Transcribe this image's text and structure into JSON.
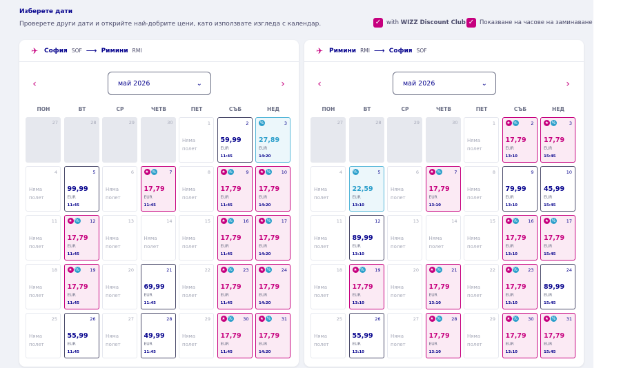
{
  "header": {
    "title": "Изберете дати",
    "subtitle": "Проверете други дати и открийте най-добрите цени, като използвате изгледа с календар.",
    "option_club_prefix": "with",
    "option_club_bold": "WIZZ Discount Club",
    "option_times": "Показване на часове на заминаване"
  },
  "colors": {
    "club_accent": "#c6007e",
    "low_fare": "#2c9fcb",
    "brand_text": "#06038d"
  },
  "icons": {
    "outbound": "plane-takeoff-icon",
    "inbound": "plane-landing-icon",
    "club": "star-icon",
    "discount": "percent-icon"
  },
  "weekdays": [
    "ПОН",
    "ВТ",
    "СР",
    "ЧЕТВ",
    "ПЕТ",
    "СЪБ",
    "НЕД"
  ],
  "no_flight_text": "Няма полет",
  "panels": [
    {
      "from_city": "София",
      "from_code": "SOF",
      "to_city": "Римини",
      "to_code": "RMI",
      "month": "май 2026",
      "days": [
        {
          "d": "27",
          "t": "past"
        },
        {
          "d": "28",
          "t": "past"
        },
        {
          "d": "29",
          "t": "past"
        },
        {
          "d": "30",
          "t": "past"
        },
        {
          "d": "1",
          "t": "none"
        },
        {
          "d": "2",
          "t": "norm",
          "p": "59,99",
          "c": "EUR",
          "tm": "11:45"
        },
        {
          "d": "3",
          "t": "low",
          "p": "27,89",
          "c": "EUR",
          "tm": "14:20",
          "i": [
            "pct"
          ]
        },
        {
          "d": "4",
          "t": "none"
        },
        {
          "d": "5",
          "t": "norm",
          "p": "99,99",
          "c": "EUR",
          "tm": "11:45"
        },
        {
          "d": "6",
          "t": "none"
        },
        {
          "d": "7",
          "t": "disc",
          "p": "17,79",
          "c": "EUR",
          "tm": "11:45",
          "i": [
            "club",
            "pct"
          ]
        },
        {
          "d": "8",
          "t": "none"
        },
        {
          "d": "9",
          "t": "disc",
          "p": "17,79",
          "c": "EUR",
          "tm": "11:45",
          "i": [
            "club",
            "pct"
          ]
        },
        {
          "d": "10",
          "t": "disc",
          "p": "17,79",
          "c": "EUR",
          "tm": "14:20",
          "i": [
            "club",
            "pct"
          ]
        },
        {
          "d": "11",
          "t": "none"
        },
        {
          "d": "12",
          "t": "disc",
          "p": "17,79",
          "c": "EUR",
          "tm": "11:45",
          "i": [
            "club",
            "pct"
          ]
        },
        {
          "d": "13",
          "t": "none"
        },
        {
          "d": "14",
          "t": "none"
        },
        {
          "d": "15",
          "t": "none"
        },
        {
          "d": "16",
          "t": "disc",
          "p": "17,79",
          "c": "EUR",
          "tm": "11:45",
          "i": [
            "club",
            "pct"
          ]
        },
        {
          "d": "17",
          "t": "disc",
          "p": "17,79",
          "c": "EUR",
          "tm": "14:20",
          "i": [
            "club",
            "pct"
          ]
        },
        {
          "d": "18",
          "t": "none"
        },
        {
          "d": "19",
          "t": "disc",
          "p": "17,79",
          "c": "EUR",
          "tm": "11:45",
          "i": [
            "club",
            "pct"
          ]
        },
        {
          "d": "20",
          "t": "none"
        },
        {
          "d": "21",
          "t": "norm",
          "p": "69,99",
          "c": "EUR",
          "tm": "11:45"
        },
        {
          "d": "22",
          "t": "none"
        },
        {
          "d": "23",
          "t": "disc",
          "p": "17,79",
          "c": "EUR",
          "tm": "11:45",
          "i": [
            "club",
            "pct"
          ]
        },
        {
          "d": "24",
          "t": "disc",
          "p": "17,79",
          "c": "EUR",
          "tm": "14:20",
          "i": [
            "club",
            "pct"
          ]
        },
        {
          "d": "25",
          "t": "none"
        },
        {
          "d": "26",
          "t": "norm",
          "p": "55,99",
          "c": "EUR",
          "tm": "11:45"
        },
        {
          "d": "27",
          "t": "none"
        },
        {
          "d": "28",
          "t": "norm",
          "p": "49,99",
          "c": "EUR",
          "tm": "11:45"
        },
        {
          "d": "29",
          "t": "none"
        },
        {
          "d": "30",
          "t": "disc",
          "p": "17,79",
          "c": "EUR",
          "tm": "11:45",
          "i": [
            "club",
            "pct"
          ]
        },
        {
          "d": "31",
          "t": "disc",
          "p": "17,79",
          "c": "EUR",
          "tm": "14:20",
          "i": [
            "club",
            "pct"
          ]
        }
      ]
    },
    {
      "from_city": "Римини",
      "from_code": "RMI",
      "to_city": "София",
      "to_code": "SOF",
      "month": "май 2026",
      "days": [
        {
          "d": "27",
          "t": "past"
        },
        {
          "d": "28",
          "t": "past"
        },
        {
          "d": "29",
          "t": "past"
        },
        {
          "d": "30",
          "t": "past"
        },
        {
          "d": "1",
          "t": "none"
        },
        {
          "d": "2",
          "t": "disc",
          "p": "17,79",
          "c": "EUR",
          "tm": "13:10",
          "i": [
            "club",
            "pct"
          ]
        },
        {
          "d": "3",
          "t": "disc",
          "p": "17,79",
          "c": "EUR",
          "tm": "15:45",
          "i": [
            "club",
            "pct"
          ]
        },
        {
          "d": "4",
          "t": "none"
        },
        {
          "d": "5",
          "t": "low",
          "p": "22,59",
          "c": "EUR",
          "tm": "13:10",
          "i": [
            "pct"
          ]
        },
        {
          "d": "6",
          "t": "none"
        },
        {
          "d": "7",
          "t": "disc",
          "p": "17,79",
          "c": "EUR",
          "tm": "13:10",
          "i": [
            "club",
            "pct"
          ]
        },
        {
          "d": "8",
          "t": "none"
        },
        {
          "d": "9",
          "t": "norm",
          "p": "79,99",
          "c": "EUR",
          "tm": "13:10"
        },
        {
          "d": "10",
          "t": "norm",
          "p": "45,99",
          "c": "EUR",
          "tm": "15:45"
        },
        {
          "d": "11",
          "t": "none"
        },
        {
          "d": "12",
          "t": "norm",
          "p": "89,99",
          "c": "EUR",
          "tm": "13:10"
        },
        {
          "d": "13",
          "t": "none"
        },
        {
          "d": "14",
          "t": "none"
        },
        {
          "d": "15",
          "t": "none"
        },
        {
          "d": "16",
          "t": "disc",
          "p": "17,79",
          "c": "EUR",
          "tm": "13:10",
          "i": [
            "club",
            "pct"
          ]
        },
        {
          "d": "17",
          "t": "disc",
          "p": "17,79",
          "c": "EUR",
          "tm": "15:45",
          "i": [
            "club",
            "pct"
          ]
        },
        {
          "d": "18",
          "t": "none"
        },
        {
          "d": "19",
          "t": "disc",
          "p": "17,79",
          "c": "EUR",
          "tm": "13:10",
          "i": [
            "club",
            "pct"
          ]
        },
        {
          "d": "20",
          "t": "none"
        },
        {
          "d": "21",
          "t": "disc",
          "p": "17,79",
          "c": "EUR",
          "tm": "13:10",
          "i": [
            "club",
            "pct"
          ]
        },
        {
          "d": "22",
          "t": "none"
        },
        {
          "d": "23",
          "t": "disc",
          "p": "17,79",
          "c": "EUR",
          "tm": "13:10",
          "i": [
            "club",
            "pct"
          ]
        },
        {
          "d": "24",
          "t": "norm",
          "p": "89,99",
          "c": "EUR",
          "tm": "15:45"
        },
        {
          "d": "25",
          "t": "none"
        },
        {
          "d": "26",
          "t": "norm",
          "p": "55,99",
          "c": "EUR",
          "tm": "13:10"
        },
        {
          "d": "27",
          "t": "none"
        },
        {
          "d": "28",
          "t": "disc",
          "p": "17,79",
          "c": "EUR",
          "tm": "13:10",
          "i": [
            "club",
            "pct"
          ]
        },
        {
          "d": "29",
          "t": "none"
        },
        {
          "d": "30",
          "t": "disc",
          "p": "17,79",
          "c": "EUR",
          "tm": "13:10",
          "i": [
            "club",
            "pct"
          ]
        },
        {
          "d": "31",
          "t": "disc",
          "p": "17,79",
          "c": "EUR",
          "tm": "15:45",
          "i": [
            "club",
            "pct"
          ]
        }
      ]
    }
  ]
}
